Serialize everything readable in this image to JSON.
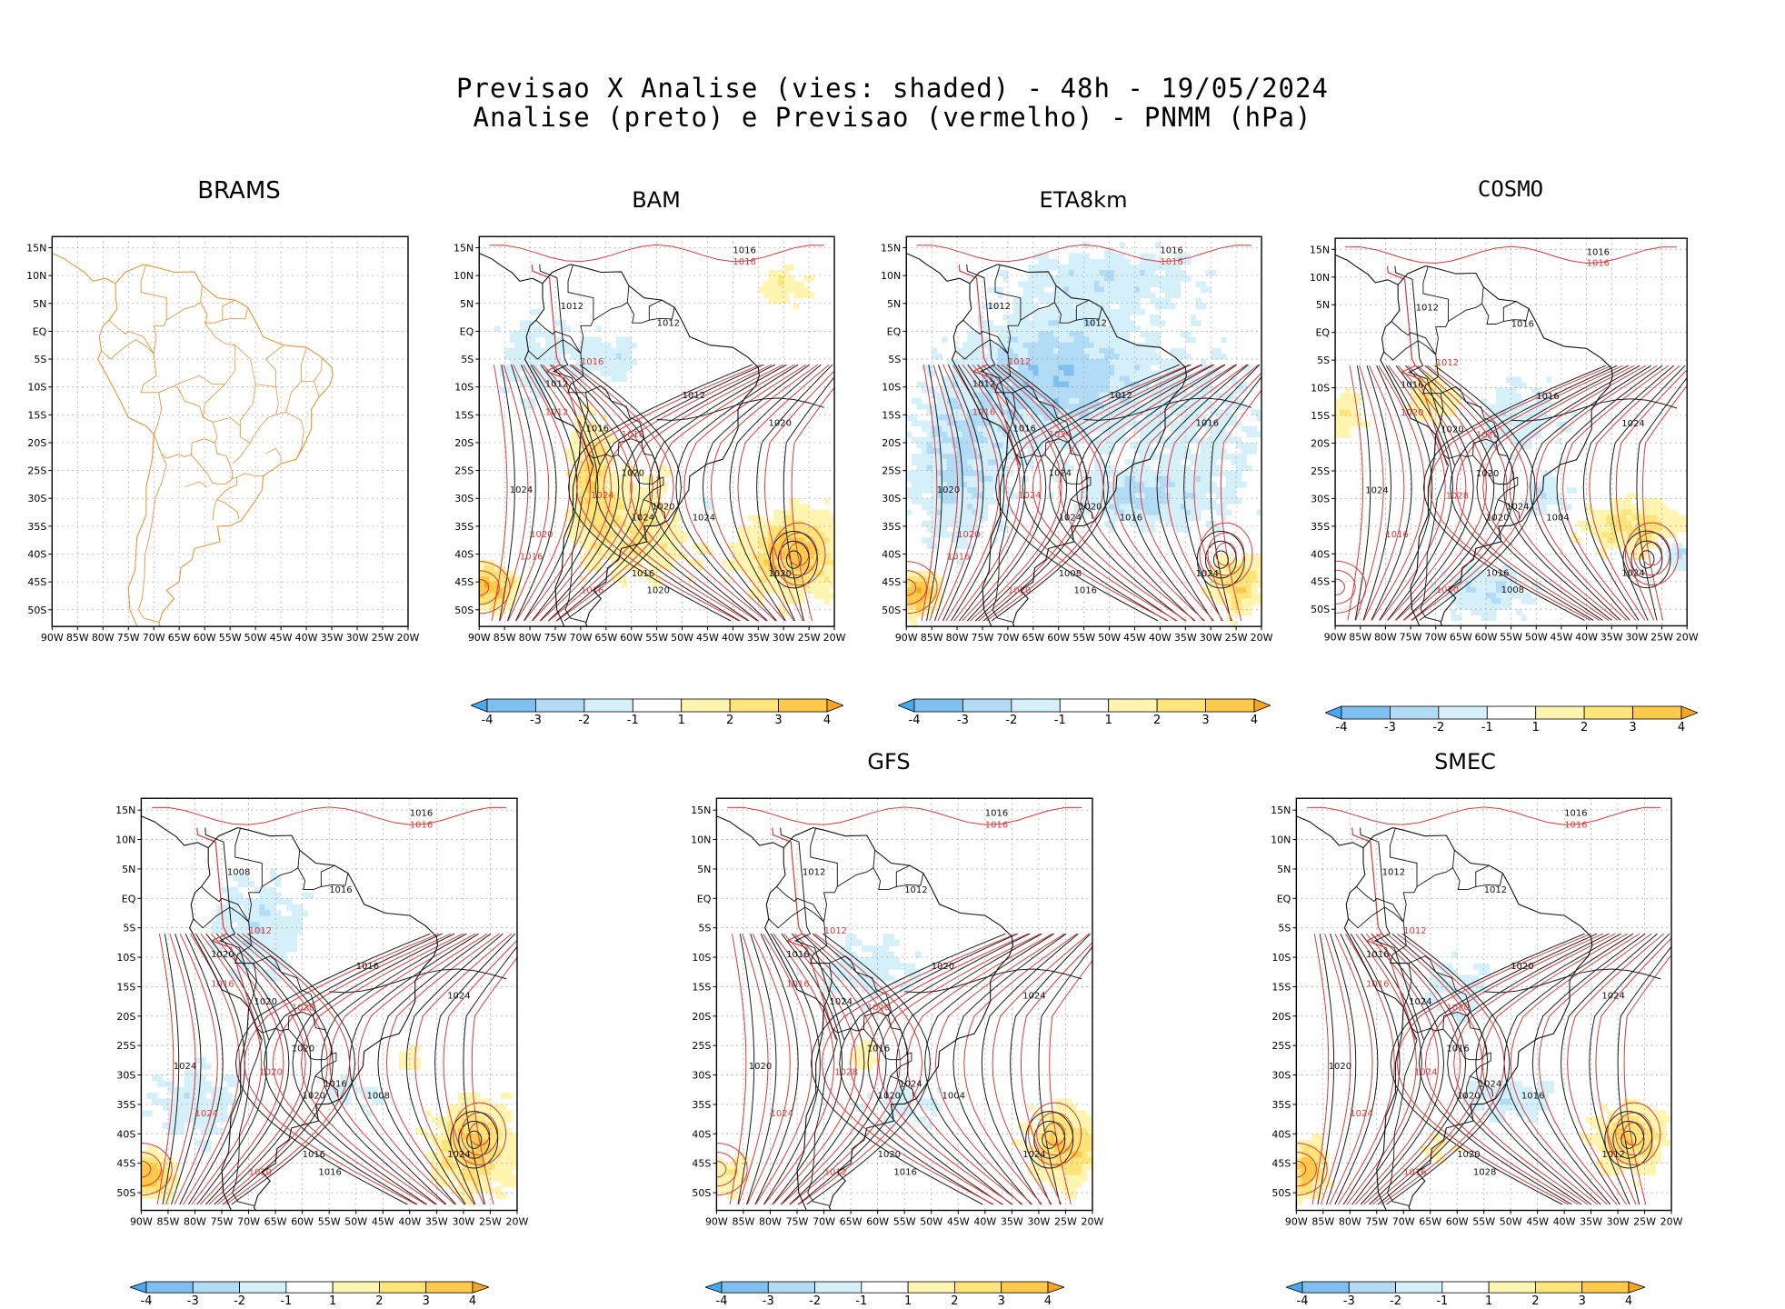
{
  "header": {
    "title_line1": "Previsao X Analise (vies: shaded) - 48h - 19/05/2024",
    "title_line2": "Analise (preto) e Previsao (vermelho) - PNMM (hPa)"
  },
  "axes": {
    "lat_labels": [
      "15N",
      "10N",
      "5N",
      "EQ",
      "5S",
      "10S",
      "15S",
      "20S",
      "25S",
      "30S",
      "35S",
      "40S",
      "45S",
      "50S"
    ],
    "lon_labels": [
      "90W",
      "85W",
      "80W",
      "75W",
      "70W",
      "65W",
      "60W",
      "55W",
      "50W",
      "45W",
      "40W",
      "35W",
      "30W",
      "25W",
      "20W"
    ]
  },
  "colorbar": {
    "labels": [
      "-4",
      "-3",
      "-2",
      "-1",
      "1",
      "2",
      "3",
      "4"
    ],
    "colors": [
      "#4aa8ec",
      "#80c0f0",
      "#b2dcf6",
      "#d6f0fa",
      "#ffffff",
      "#fff5b0",
      "#ffe47a",
      "#ffc94a",
      "#f5a623"
    ]
  },
  "panels": [
    {
      "name": "BRAMS",
      "title": "BRAMS",
      "has_data": false
    },
    {
      "name": "BAM",
      "title": "BAM",
      "has_data": true,
      "contour_labels": [
        "1016",
        "1016",
        "1012",
        "1012",
        "1016",
        "1012",
        "1012",
        "1012",
        "1016",
        "1020",
        "1016",
        "1024",
        "1020",
        "1024",
        "1020",
        "1024",
        "1020",
        "1024",
        "1020",
        "1016",
        "1020",
        "1016",
        "1016"
      ]
    },
    {
      "name": "ETA8km",
      "title": "ETA8km",
      "has_data": true,
      "contour_labels": [
        "1016",
        "1016",
        "1012",
        "1012",
        "1012",
        "1012",
        "1012",
        "1016",
        "1016",
        "1016",
        "1024",
        "1020",
        "1024",
        "1024",
        "1020",
        "1024",
        "1020",
        "1016",
        "1016",
        "1020",
        "1024",
        "1008",
        "1016"
      ]
    },
    {
      "name": "COSMO",
      "title": "COSMO",
      "has_data": true,
      "contour_labels": [
        "1016",
        "1016",
        "1012",
        "1016",
        "1012",
        "1016",
        "1016",
        "1020",
        "1020",
        "1024",
        "1020",
        "1024",
        "1020",
        "1028",
        "1024",
        "1020",
        "1016",
        "1004",
        "1008",
        "1020",
        "1024",
        "1016"
      ]
    },
    {
      "name": "Panel5",
      "title": "",
      "has_data": true,
      "contour_labels": [
        "1016",
        "1016",
        "1008",
        "1016",
        "1012",
        "1020",
        "1016",
        "1016",
        "1020",
        "1024",
        "1028",
        "1024",
        "1020",
        "1020",
        "1016",
        "1020",
        "1024",
        "1008",
        "1016",
        "1020",
        "1024",
        "1016"
      ]
    },
    {
      "name": "GFS",
      "title": "GFS",
      "has_data": true,
      "contour_labels": [
        "1016",
        "1016",
        "1012",
        "1012",
        "1012",
        "1016",
        "1020",
        "1016",
        "1024",
        "1024",
        "1020",
        "1020",
        "1016",
        "1028",
        "1024",
        "1020",
        "1024",
        "1004",
        "1016",
        "1012",
        "1024",
        "1020"
      ]
    },
    {
      "name": "SMEC",
      "title": "SMEC",
      "has_data": true,
      "contour_labels": [
        "1016",
        "1016",
        "1012",
        "1012",
        "1012",
        "1016",
        "1020",
        "1016",
        "1024",
        "1024",
        "1020",
        "1020",
        "1016",
        "1024",
        "1024",
        "1020",
        "1024",
        "1016",
        "1028",
        "1016",
        "1012",
        "1020"
      ]
    }
  ]
}
